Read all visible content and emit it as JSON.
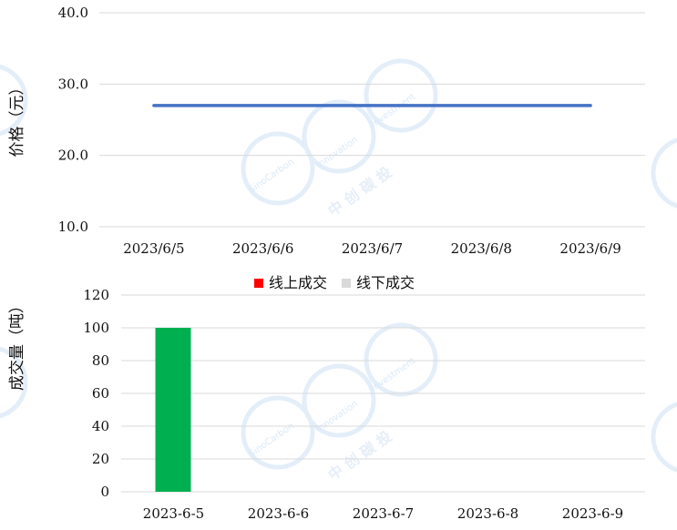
{
  "chart_data": [
    {
      "type": "line",
      "categories": [
        "2023/6/5",
        "2023/6/6",
        "2023/6/7",
        "2023/6/8",
        "2023/6/9"
      ],
      "series": [
        {
          "values": [
            27.0,
            27.0,
            27.0,
            27.0,
            27.0
          ],
          "color": "#4472c4"
        }
      ],
      "ylabel": "价格（元）",
      "ylim": [
        10,
        40
      ],
      "yticks": [
        "10.0",
        "20.0",
        "30.0",
        "40.0"
      ],
      "grid": true
    },
    {
      "type": "bar",
      "categories": [
        "2023-6-5",
        "2023-6-6",
        "2023-6-7",
        "2023-6-8",
        "2023-6-9"
      ],
      "series": [
        {
          "name": "线上成交",
          "values": [
            100,
            0,
            0,
            0,
            0
          ],
          "color": "#00b050",
          "legend_color": "#ff0000"
        },
        {
          "name": "线下成交",
          "values": [
            0,
            0,
            0,
            0,
            0
          ],
          "color": "#d9d9d9",
          "legend_color": "#d9d9d9"
        }
      ],
      "ylabel": "成交量（吨）",
      "ylim": [
        0,
        120
      ],
      "yticks": [
        "0",
        "20",
        "40",
        "60",
        "80",
        "100",
        "120"
      ],
      "legend_position": "top",
      "grid": true
    }
  ],
  "watermark": {
    "text_en_1": "SinoCarbon",
    "text_en_2": "Innovation",
    "text_en_3": "Investment",
    "text_cn": "中 创 碳 投"
  }
}
